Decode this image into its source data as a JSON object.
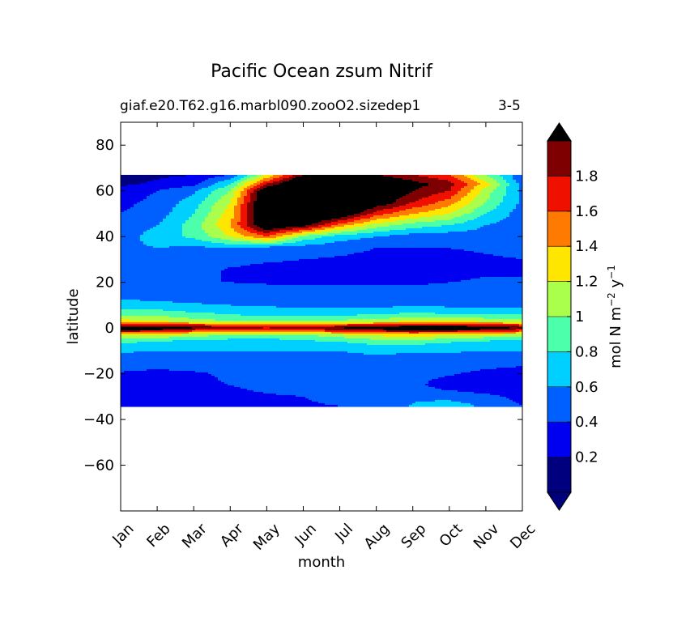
{
  "chart_data": {
    "type": "heatmap",
    "title": "Pacific Ocean zsum Nitrif",
    "subtitle": "giaf.e20.T62.g16.marbl090.zooO2.sizedep1",
    "period_label": "3-5",
    "xlabel": "month",
    "ylabel": "latitude",
    "x_categories": [
      "Jan",
      "Feb",
      "Mar",
      "Apr",
      "May",
      "Jun",
      "Jul",
      "Aug",
      "Sep",
      "Oct",
      "Nov",
      "Dec"
    ],
    "ylim": [
      -80,
      90
    ],
    "y_ticks": [
      -60,
      -40,
      -20,
      0,
      20,
      40,
      60,
      80
    ],
    "y_tick_labels": [
      "−60",
      "−40",
      "−20",
      "0",
      "20",
      "40",
      "60",
      "80"
    ],
    "data_lat_range": [
      -34,
      67
    ],
    "colorbar": {
      "label_text": "mol N m",
      "label_sup1": "−2",
      "label_mid": " y",
      "label_sup2": "−1",
      "levels": [
        0,
        0.2,
        0.4,
        0.6,
        0.8,
        1.0,
        1.2,
        1.4,
        1.6,
        1.8,
        2.0
      ],
      "tick_values": [
        0.2,
        0.4,
        0.6,
        0.8,
        1.0,
        1.2,
        1.4,
        1.6,
        1.8
      ],
      "tick_labels": [
        "0.2",
        "0.4",
        "0.6",
        "0.8",
        "1",
        "1.2",
        "1.4",
        "1.6",
        "1.8"
      ],
      "colors": [
        "#00007f",
        "#0000f0",
        "#0060ff",
        "#00d0ff",
        "#4cffaa",
        "#aaff4c",
        "#ffe600",
        "#ff7a00",
        "#f01000",
        "#7f0000"
      ],
      "extend": "both",
      "under_color": "#00007f",
      "over_color": "#000000"
    },
    "lat_nodes": [
      -34,
      -30,
      -25,
      -20,
      -15,
      -10,
      -6,
      -3,
      -1,
      0,
      1,
      3,
      6,
      10,
      15,
      20,
      25,
      30,
      35,
      40,
      45,
      50,
      55,
      60,
      63,
      67
    ],
    "month_nodes": [
      0,
      1,
      2,
      3,
      4,
      5,
      6,
      7,
      8,
      9,
      10,
      11
    ],
    "grid": [
      [
        0.38,
        0.38,
        0.38,
        0.38,
        0.38,
        0.38,
        0.4,
        0.45,
        0.62,
        0.72,
        0.55,
        0.4
      ],
      [
        0.35,
        0.35,
        0.35,
        0.35,
        0.38,
        0.4,
        0.45,
        0.5,
        0.55,
        0.52,
        0.45,
        0.35
      ],
      [
        0.35,
        0.35,
        0.38,
        0.4,
        0.45,
        0.48,
        0.5,
        0.5,
        0.45,
        0.3,
        0.25,
        0.28
      ],
      [
        0.38,
        0.35,
        0.38,
        0.42,
        0.45,
        0.48,
        0.5,
        0.5,
        0.45,
        0.42,
        0.35,
        0.3
      ],
      [
        0.5,
        0.48,
        0.48,
        0.5,
        0.5,
        0.5,
        0.5,
        0.5,
        0.5,
        0.5,
        0.48,
        0.45
      ],
      [
        0.62,
        0.6,
        0.6,
        0.6,
        0.6,
        0.6,
        0.6,
        0.65,
        0.62,
        0.62,
        0.6,
        0.6
      ],
      [
        0.85,
        0.78,
        0.7,
        0.68,
        0.68,
        0.75,
        0.8,
        0.88,
        0.88,
        0.82,
        0.75,
        0.72
      ],
      [
        1.25,
        1.2,
        1.1,
        1.0,
        0.95,
        1.0,
        1.1,
        1.25,
        1.3,
        1.25,
        1.15,
        1.1
      ],
      [
        1.95,
        1.9,
        1.7,
        1.6,
        1.55,
        1.6,
        1.8,
        1.9,
        1.95,
        1.95,
        1.85,
        1.7
      ],
      [
        2.3,
        2.3,
        2.0,
        1.9,
        1.8,
        1.9,
        2.0,
        2.1,
        2.4,
        2.5,
        2.2,
        1.9
      ],
      [
        1.9,
        1.9,
        1.8,
        1.7,
        1.65,
        1.7,
        1.75,
        1.85,
        1.95,
        1.95,
        1.85,
        1.75
      ],
      [
        1.3,
        1.2,
        1.1,
        1.0,
        1.0,
        1.0,
        1.05,
        1.1,
        1.2,
        1.2,
        1.15,
        1.1
      ],
      [
        0.9,
        0.95,
        0.85,
        0.8,
        0.72,
        0.72,
        0.75,
        0.8,
        0.85,
        0.82,
        0.8,
        0.8
      ],
      [
        0.7,
        0.65,
        0.62,
        0.6,
        0.58,
        0.55,
        0.55,
        0.55,
        0.55,
        0.55,
        0.55,
        0.55
      ],
      [
        0.5,
        0.5,
        0.5,
        0.5,
        0.5,
        0.45,
        0.45,
        0.45,
        0.45,
        0.48,
        0.45,
        0.45
      ],
      [
        0.45,
        0.42,
        0.4,
        0.4,
        0.38,
        0.38,
        0.38,
        0.38,
        0.38,
        0.4,
        0.42,
        0.4
      ],
      [
        0.48,
        0.48,
        0.45,
        0.38,
        0.35,
        0.35,
        0.35,
        0.35,
        0.35,
        0.35,
        0.38,
        0.4
      ],
      [
        0.5,
        0.5,
        0.48,
        0.45,
        0.42,
        0.4,
        0.38,
        0.35,
        0.3,
        0.3,
        0.35,
        0.4
      ],
      [
        0.55,
        0.6,
        0.55,
        0.6,
        0.5,
        0.5,
        0.45,
        0.4,
        0.4,
        0.4,
        0.45,
        0.5
      ],
      [
        0.5,
        0.7,
        0.85,
        1.2,
        1.6,
        0.95,
        0.7,
        0.6,
        0.5,
        0.48,
        0.5,
        0.5
      ],
      [
        0.45,
        0.6,
        0.9,
        1.4,
        2.3,
        2.1,
        1.5,
        1.1,
        0.9,
        0.8,
        0.6,
        0.5
      ],
      [
        0.4,
        0.5,
        0.8,
        1.3,
        2.4,
        2.5,
        2.3,
        1.7,
        1.4,
        1.2,
        0.8,
        0.5
      ],
      [
        0.35,
        0.45,
        0.7,
        1.2,
        2.4,
        2.6,
        2.5,
        2.2,
        1.8,
        1.5,
        1.0,
        0.55
      ],
      [
        0.3,
        0.4,
        0.55,
        1.0,
        2.3,
        2.7,
        2.7,
        2.3,
        2.0,
        1.8,
        1.1,
        0.55
      ],
      [
        0.15,
        0.25,
        0.35,
        0.8,
        1.8,
        2.5,
        2.6,
        2.4,
        2.1,
        1.9,
        1.3,
        0.5
      ],
      [
        0.1,
        0.15,
        0.2,
        0.4,
        1.2,
        2.0,
        2.2,
        2.0,
        1.8,
        1.6,
        1.0,
        0.4
      ]
    ]
  }
}
